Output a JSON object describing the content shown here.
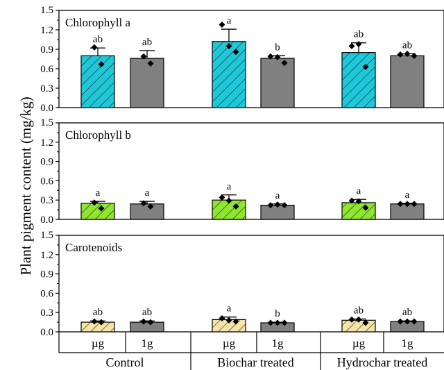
{
  "chart_data": {
    "type": "bar",
    "ylabel": "Plant pigment content (mg/kg)",
    "ylim": [
      0,
      1.5
    ],
    "yticks": [
      "0.0",
      "0.3",
      "0.6",
      "0.9",
      "1.2",
      "1.5"
    ],
    "groups": [
      "Control",
      "Biochar treated",
      "Hydrochar treated"
    ],
    "subcategories": [
      "µg",
      "1g"
    ],
    "panels": [
      {
        "title": "Chlorophyll a",
        "colors": [
          "#1ec8d8",
          "#808080"
        ],
        "hatched": [
          true,
          false
        ],
        "bars": [
          {
            "group": "Control",
            "sub": "µg",
            "value": 0.8,
            "error": 0.12,
            "sig": "ab",
            "points": [
              0.93,
              0.67
            ]
          },
          {
            "group": "Control",
            "sub": "1g",
            "value": 0.76,
            "error": 0.12,
            "sig": "ab",
            "points": [
              0.79,
              0.68
            ]
          },
          {
            "group": "Biochar treated",
            "sub": "µg",
            "value": 1.02,
            "error": 0.19,
            "sig": "a",
            "points": [
              1.28,
              0.95,
              0.86
            ]
          },
          {
            "group": "Biochar treated",
            "sub": "1g",
            "value": 0.76,
            "error": 0.04,
            "sig": "b",
            "points": [
              0.79,
              0.78,
              0.69
            ]
          },
          {
            "group": "Hydrochar treated",
            "sub": "µg",
            "value": 0.85,
            "error": 0.15,
            "sig": "ab",
            "points": [
              0.95,
              0.98,
              0.63
            ]
          },
          {
            "group": "Hydrochar treated",
            "sub": "1g",
            "value": 0.8,
            "error": 0.03,
            "sig": "ab",
            "points": [
              0.82,
              0.83,
              0.8
            ]
          }
        ]
      },
      {
        "title": "Chlorophyll b",
        "colors": [
          "#8fe630",
          "#808080"
        ],
        "hatched": [
          true,
          false
        ],
        "bars": [
          {
            "group": "Control",
            "sub": "µg",
            "value": 0.25,
            "error": 0.03,
            "sig": "a",
            "points": [
              0.26,
              0.17
            ]
          },
          {
            "group": "Control",
            "sub": "1g",
            "value": 0.24,
            "error": 0.04,
            "sig": "a",
            "points": [
              0.25,
              0.2
            ]
          },
          {
            "group": "Biochar treated",
            "sub": "µg",
            "value": 0.3,
            "error": 0.08,
            "sig": "a",
            "points": [
              0.34,
              0.29,
              0.2
            ]
          },
          {
            "group": "Biochar treated",
            "sub": "1g",
            "value": 0.22,
            "error": 0.02,
            "sig": "a",
            "points": [
              0.22,
              0.23,
              0.22
            ]
          },
          {
            "group": "Hydrochar treated",
            "sub": "µg",
            "value": 0.26,
            "error": 0.05,
            "sig": "a",
            "points": [
              0.29,
              0.28,
              0.18
            ]
          },
          {
            "group": "Hydrochar treated",
            "sub": "1g",
            "value": 0.24,
            "error": 0.01,
            "sig": "a",
            "points": [
              0.24,
              0.24,
              0.24
            ]
          }
        ]
      },
      {
        "title": "Carotenoids",
        "colors": [
          "#f5e4a8",
          "#808080"
        ],
        "hatched": [
          true,
          false
        ],
        "bars": [
          {
            "group": "Control",
            "sub": "µg",
            "value": 0.15,
            "error": 0.02,
            "sig": "ab",
            "points": [
              0.16,
              0.15
            ]
          },
          {
            "group": "Control",
            "sub": "1g",
            "value": 0.15,
            "error": 0.02,
            "sig": "ab",
            "points": [
              0.16,
              0.15
            ]
          },
          {
            "group": "Biochar treated",
            "sub": "µg",
            "value": 0.19,
            "error": 0.04,
            "sig": "a",
            "points": [
              0.21,
              0.18,
              0.16
            ]
          },
          {
            "group": "Biochar treated",
            "sub": "1g",
            "value": 0.14,
            "error": 0.01,
            "sig": "b",
            "points": [
              0.14,
              0.14,
              0.14
            ]
          },
          {
            "group": "Hydrochar treated",
            "sub": "µg",
            "value": 0.18,
            "error": 0.02,
            "sig": "ab",
            "points": [
              0.19,
              0.19,
              0.14
            ]
          },
          {
            "group": "Hydrochar treated",
            "sub": "1g",
            "value": 0.16,
            "error": 0.01,
            "sig": "ab",
            "points": [
              0.16,
              0.16,
              0.16
            ]
          }
        ]
      }
    ]
  }
}
